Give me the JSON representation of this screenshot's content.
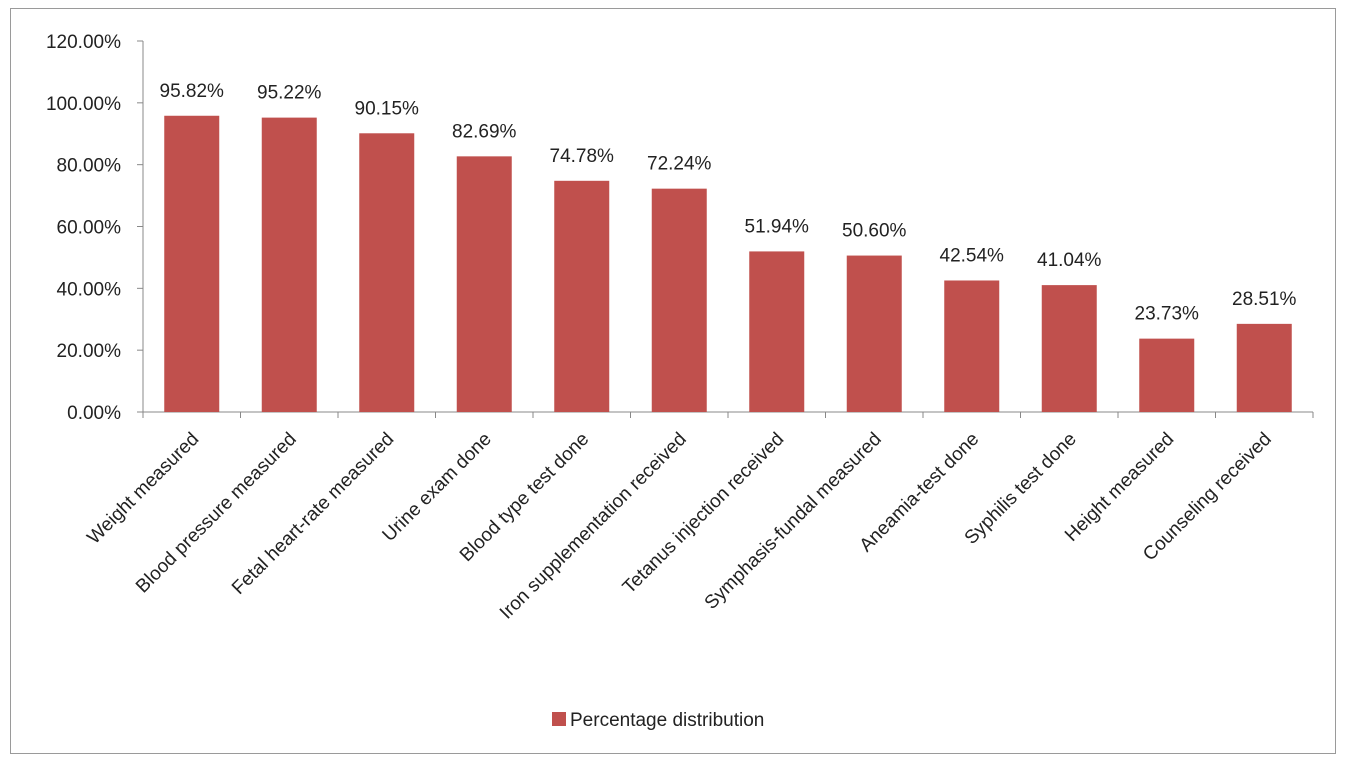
{
  "chart_data": {
    "type": "bar",
    "title": "",
    "xlabel": "",
    "ylabel": "",
    "ylim": [
      0,
      120
    ],
    "y_ticks": [
      "0.00%",
      "20.00%",
      "40.00%",
      "60.00%",
      "80.00%",
      "100.00%",
      "120.00%"
    ],
    "y_tick_values": [
      0,
      20,
      40,
      60,
      80,
      100,
      120
    ],
    "categories": [
      "Weight measured",
      "Blood pressure measured",
      "Fetal heart-rate measured",
      "Urine exam done",
      "Blood type  test done",
      "Iron supplementation received",
      "Tetanus injection received",
      "Symphasis-fundal measured",
      "Aneamia-test done",
      "Syphilis test done",
      "Height measured",
      "Counseling received"
    ],
    "series": [
      {
        "name": "Percentage distribution",
        "values": [
          95.82,
          95.22,
          90.15,
          82.69,
          74.78,
          72.24,
          51.94,
          50.6,
          42.54,
          41.04,
          23.73,
          28.51
        ],
        "labels": [
          "95.82%",
          "95.22%",
          "90.15%",
          "82.69%",
          "74.78%",
          "72.24%",
          "51.94%",
          "50.60%",
          "42.54%",
          "41.04%",
          "23.73%",
          "28.51%"
        ],
        "color": "#c0504d"
      }
    ],
    "grid": false,
    "legend_position": "bottom"
  }
}
